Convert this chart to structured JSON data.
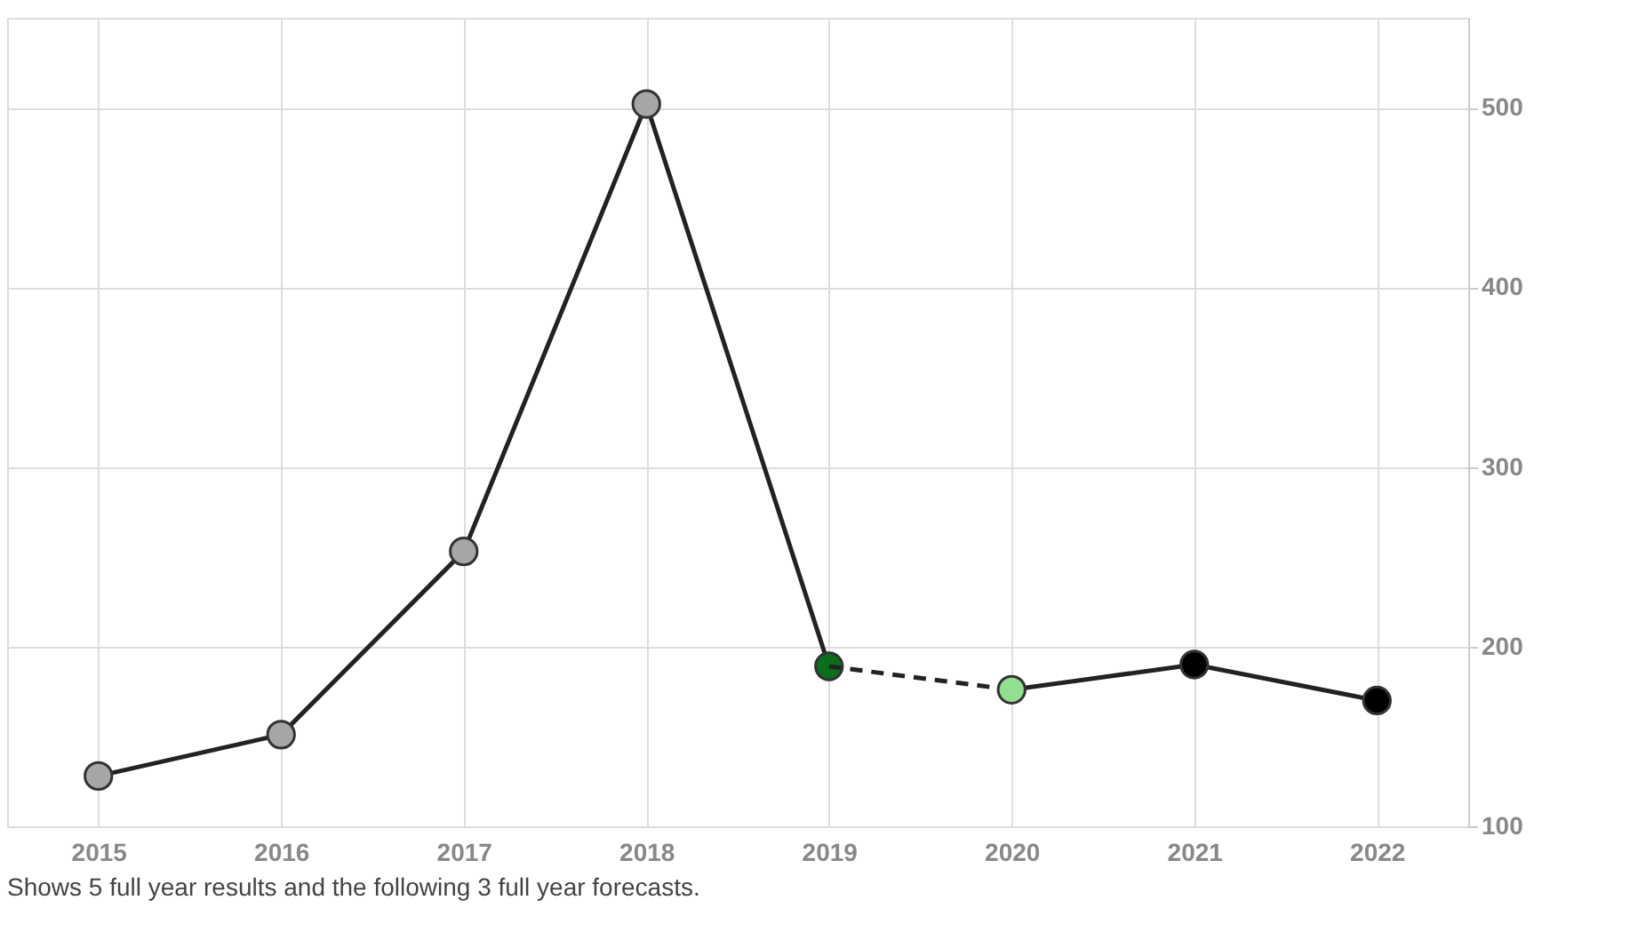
{
  "chart_data": {
    "type": "line",
    "categories": [
      "2015",
      "2016",
      "2017",
      "2018",
      "2019",
      "2020",
      "2021",
      "2022"
    ],
    "series": [
      {
        "values": [
          128,
          151,
          253,
          502,
          189,
          null,
          null,
          null
        ],
        "color": "#222222",
        "colors": [
          "#a6a6a6",
          "#a6a6a6",
          "#a6a6a6",
          "#a6a6a6",
          "#0b6e1a",
          null,
          null,
          null
        ],
        "marker": "circle",
        "line_style": "solid"
      },
      {
        "values": [
          null,
          null,
          null,
          null,
          189,
          176,
          null,
          null
        ],
        "color": "#222222",
        "marker": "none",
        "line_style": "dashed"
      },
      {
        "values": [
          null,
          null,
          null,
          null,
          null,
          176,
          190,
          170
        ],
        "color": "#222222",
        "colors": [
          null,
          null,
          null,
          null,
          null,
          "#90e090",
          "#000000",
          "#000000"
        ],
        "marker": "circle",
        "line_style": "solid"
      }
    ],
    "ylim": [
      100,
      550
    ],
    "yticks": [
      100,
      200,
      300,
      400,
      500
    ],
    "grid": true,
    "annotations": [
      "Shows 5 full year results and the following 3 full year forecasts."
    ]
  }
}
